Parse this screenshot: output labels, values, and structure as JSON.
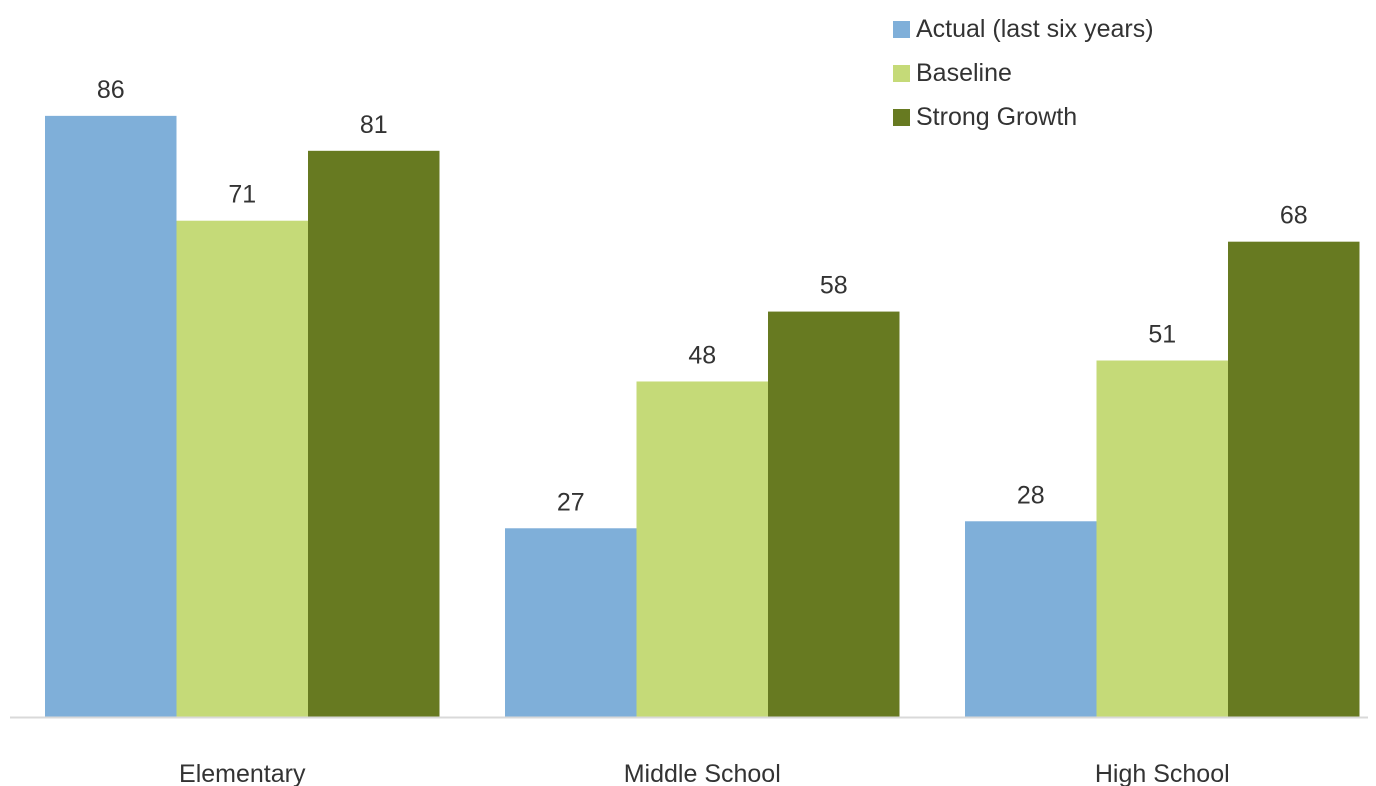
{
  "chart_data": {
    "type": "bar",
    "categories": [
      "Elementary",
      "Middle School",
      "High School"
    ],
    "series": [
      {
        "name": "Actual (last six years)",
        "values": [
          86,
          27,
          28
        ],
        "color": "#7fafd9"
      },
      {
        "name": "Baseline",
        "values": [
          71,
          48,
          51
        ],
        "color": "#c5da78"
      },
      {
        "name": "Strong Growth",
        "values": [
          81,
          58,
          68
        ],
        "color": "#677a21"
      }
    ],
    "data_labels": true,
    "ylim": [
      0,
      100
    ],
    "y_axis_visible": false,
    "grid": false,
    "legend_position": "top-right",
    "axis_line_color": "#d9d9d9",
    "text_color": "#333333"
  }
}
